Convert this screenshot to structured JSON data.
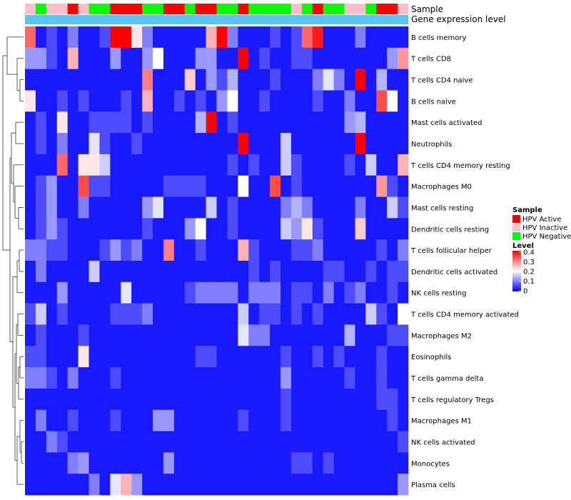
{
  "chart_data": {
    "type": "heatmap",
    "annotation_labels": [
      "Sample",
      "Gene expression level"
    ],
    "sample_annotation": [
      "HPV Inactive",
      "HPV Negative",
      "HPV Inactive",
      "HPV Inactive",
      "HPV Active",
      "HPV Inactive",
      "HPV Negative",
      "HPV Negative",
      "HPV Active",
      "HPV Active",
      "HPV Active",
      "HPV Negative",
      "HPV Negative",
      "HPV Active",
      "HPV Active",
      "HPV Negative",
      "HPV Active",
      "HPV Active",
      "HPV Negative",
      "HPV Negative",
      "HPV Active",
      "HPV Negative",
      "HPV Negative",
      "HPV Negative",
      "HPV Negative",
      "HPV Inactive",
      "HPV Negative",
      "HPV Active",
      "HPV Negative",
      "HPV Negative",
      "HPV Inactive",
      "HPV Inactive",
      "HPV Negative",
      "HPV Active",
      "HPV Active",
      "HPV Inactive"
    ],
    "rows": [
      "B cells memory",
      "T cells CD8",
      "T cells CD4 naive",
      "B cells naive",
      "Mast cells activated",
      "Neutrophils",
      "T cells CD4 memory resting",
      "Macrophages M0",
      "Mast cells resting",
      "Dendritic cells resting",
      "T cells follicular helper",
      "Dendritic cells activated",
      "NK cells resting",
      "T cells CD4 memory activated",
      "Macrophages M2",
      "Eosinophils",
      "T cells gamma delta",
      "T cells regulatory  Tregs",
      "Macrophages M1",
      "NK cells activated",
      "Monocytes",
      "Plasma cells"
    ],
    "values": [
      [
        0.32,
        0.02,
        0.06,
        0.02,
        0.1,
        0.02,
        0.02,
        0.06,
        0.4,
        0.4,
        0.22,
        0.1,
        0.02,
        0.02,
        0.02,
        0.02,
        0.02,
        0.26,
        0.4,
        0.1,
        0.02,
        0.02,
        0.02,
        0.06,
        0.02,
        0.06,
        0.32,
        0.38,
        0.02,
        0.02,
        0.02,
        0.1,
        0.02,
        0.02,
        0.02,
        0.02
      ],
      [
        0.12,
        0.12,
        0.06,
        0.02,
        0.26,
        0.02,
        0.02,
        0.02,
        0.12,
        0.02,
        0.02,
        0.12,
        0.2,
        0.02,
        0.02,
        0.02,
        0.12,
        0.12,
        0.02,
        0.02,
        0.4,
        0.02,
        0.06,
        0.02,
        0.02,
        0.06,
        0.06,
        0.02,
        0.02,
        0.02,
        0.02,
        0.02,
        0.02,
        0.02,
        0.12,
        0.28
      ],
      [
        0.02,
        0.02,
        0.02,
        0.02,
        0.02,
        0.02,
        0.02,
        0.02,
        0.02,
        0.02,
        0.02,
        0.3,
        0.02,
        0.02,
        0.02,
        0.24,
        0.02,
        0.12,
        0.06,
        0.14,
        0.02,
        0.02,
        0.02,
        0.06,
        0.02,
        0.02,
        0.02,
        0.1,
        0.18,
        0.1,
        0.02,
        0.4,
        0.02,
        0.14,
        0.02,
        0.02
      ],
      [
        0.22,
        0.02,
        0.02,
        0.06,
        0.02,
        0.06,
        0.02,
        0.02,
        0.02,
        0.06,
        0.02,
        0.26,
        0.02,
        0.02,
        0.06,
        0.02,
        0.06,
        0.02,
        0.12,
        0.2,
        0.02,
        0.02,
        0.06,
        0.02,
        0.02,
        0.02,
        0.02,
        0.06,
        0.02,
        0.02,
        0.1,
        0.02,
        0.02,
        0.34,
        0.2,
        0.02
      ],
      [
        0.02,
        0.06,
        0.02,
        0.22,
        0.02,
        0.02,
        0.06,
        0.06,
        0.06,
        0.06,
        0.02,
        0.06,
        0.02,
        0.02,
        0.02,
        0.02,
        0.14,
        0.4,
        0.02,
        0.06,
        0.02,
        0.02,
        0.02,
        0.02,
        0.02,
        0.02,
        0.02,
        0.02,
        0.02,
        0.02,
        0.12,
        0.14,
        0.02,
        0.02,
        0.02,
        0.02
      ],
      [
        0.02,
        0.06,
        0.02,
        0.1,
        0.02,
        0.02,
        0.18,
        0.06,
        0.02,
        0.02,
        0.06,
        0.02,
        0.02,
        0.02,
        0.02,
        0.02,
        0.02,
        0.02,
        0.02,
        0.02,
        0.4,
        0.02,
        0.02,
        0.02,
        0.16,
        0.02,
        0.02,
        0.02,
        0.02,
        0.02,
        0.02,
        0.4,
        0.02,
        0.02,
        0.02,
        0.02
      ],
      [
        0.02,
        0.02,
        0.02,
        0.32,
        0.02,
        0.22,
        0.22,
        0.16,
        0.02,
        0.02,
        0.02,
        0.02,
        0.02,
        0.02,
        0.02,
        0.02,
        0.02,
        0.02,
        0.02,
        0.06,
        0.02,
        0.06,
        0.02,
        0.02,
        0.16,
        0.06,
        0.02,
        0.02,
        0.02,
        0.02,
        0.06,
        0.02,
        0.16,
        0.02,
        0.02,
        0.26
      ],
      [
        0.02,
        0.06,
        0.12,
        0.02,
        0.02,
        0.34,
        0.06,
        0.06,
        0.02,
        0.02,
        0.02,
        0.02,
        0.02,
        0.06,
        0.06,
        0.06,
        0.06,
        0.02,
        0.02,
        0.02,
        0.2,
        0.02,
        0.02,
        0.34,
        0.02,
        0.06,
        0.02,
        0.02,
        0.02,
        0.02,
        0.02,
        0.02,
        0.02,
        0.28,
        0.06,
        0.02
      ],
      [
        0.02,
        0.06,
        0.12,
        0.02,
        0.02,
        0.1,
        0.02,
        0.02,
        0.02,
        0.02,
        0.02,
        0.12,
        0.18,
        0.02,
        0.02,
        0.02,
        0.02,
        0.16,
        0.02,
        0.06,
        0.02,
        0.02,
        0.02,
        0.02,
        0.1,
        0.14,
        0.1,
        0.02,
        0.02,
        0.02,
        0.02,
        0.1,
        0.02,
        0.02,
        0.16,
        0.06
      ],
      [
        0.02,
        0.06,
        0.12,
        0.06,
        0.02,
        0.02,
        0.02,
        0.02,
        0.02,
        0.02,
        0.02,
        0.06,
        0.02,
        0.02,
        0.02,
        0.12,
        0.2,
        0.02,
        0.02,
        0.06,
        0.02,
        0.02,
        0.02,
        0.02,
        0.16,
        0.12,
        0.22,
        0.06,
        0.02,
        0.02,
        0.02,
        0.24,
        0.02,
        0.02,
        0.02,
        0.02
      ],
      [
        0.1,
        0.1,
        0.06,
        0.06,
        0.02,
        0.02,
        0.02,
        0.06,
        0.12,
        0.06,
        0.1,
        0.02,
        0.02,
        0.3,
        0.02,
        0.02,
        0.06,
        0.02,
        0.02,
        0.02,
        0.26,
        0.06,
        0.02,
        0.02,
        0.02,
        0.06,
        0.06,
        0.1,
        0.02,
        0.02,
        0.02,
        0.02,
        0.02,
        0.06,
        0.02,
        0.1
      ],
      [
        0.02,
        0.1,
        0.02,
        0.02,
        0.02,
        0.02,
        0.16,
        0.02,
        0.02,
        0.02,
        0.02,
        0.02,
        0.02,
        0.02,
        0.02,
        0.02,
        0.02,
        0.02,
        0.02,
        0.02,
        0.02,
        0.06,
        0.02,
        0.06,
        0.02,
        0.02,
        0.02,
        0.02,
        0.06,
        0.06,
        0.02,
        0.02,
        0.06,
        0.02,
        0.06,
        0.06
      ],
      [
        0.02,
        0.02,
        0.02,
        0.12,
        0.02,
        0.02,
        0.02,
        0.02,
        0.02,
        0.18,
        0.02,
        0.02,
        0.02,
        0.02,
        0.02,
        0.06,
        0.1,
        0.1,
        0.1,
        0.1,
        0.02,
        0.1,
        0.1,
        0.1,
        0.02,
        0.06,
        0.06,
        0.02,
        0.1,
        0.02,
        0.06,
        0.1,
        0.02,
        0.02,
        0.06,
        0.02
      ],
      [
        0.06,
        0.16,
        0.02,
        0.06,
        0.02,
        0.02,
        0.02,
        0.02,
        0.06,
        0.06,
        0.06,
        0.1,
        0.02,
        0.02,
        0.02,
        0.02,
        0.02,
        0.02,
        0.02,
        0.02,
        0.16,
        0.02,
        0.06,
        0.06,
        0.02,
        0.06,
        0.02,
        0.06,
        0.02,
        0.02,
        0.02,
        0.02,
        0.16,
        0.06,
        0.02,
        0.2
      ],
      [
        0.02,
        0.06,
        0.02,
        0.02,
        0.02,
        0.06,
        0.02,
        0.02,
        0.02,
        0.02,
        0.02,
        0.02,
        0.02,
        0.02,
        0.02,
        0.02,
        0.02,
        0.02,
        0.02,
        0.02,
        0.18,
        0.1,
        0.1,
        0.02,
        0.02,
        0.02,
        0.02,
        0.02,
        0.02,
        0.02,
        0.14,
        0.02,
        0.02,
        0.02,
        0.06,
        0.06
      ],
      [
        0.06,
        0.06,
        0.02,
        0.02,
        0.02,
        0.22,
        0.02,
        0.02,
        0.02,
        0.02,
        0.02,
        0.02,
        0.02,
        0.02,
        0.02,
        0.02,
        0.06,
        0.06,
        0.02,
        0.02,
        0.02,
        0.02,
        0.02,
        0.02,
        0.06,
        0.02,
        0.02,
        0.06,
        0.02,
        0.06,
        0.02,
        0.02,
        0.02,
        0.06,
        0.02,
        0.02
      ],
      [
        0.1,
        0.1,
        0.06,
        0.02,
        0.1,
        0.02,
        0.02,
        0.02,
        0.06,
        0.02,
        0.02,
        0.02,
        0.02,
        0.02,
        0.02,
        0.02,
        0.02,
        0.02,
        0.02,
        0.02,
        0.02,
        0.02,
        0.02,
        0.02,
        0.12,
        0.02,
        0.02,
        0.02,
        0.02,
        0.02,
        0.06,
        0.02,
        0.02,
        0.06,
        0.02,
        0.02
      ],
      [
        0.02,
        0.02,
        0.02,
        0.02,
        0.02,
        0.02,
        0.02,
        0.02,
        0.02,
        0.02,
        0.02,
        0.02,
        0.02,
        0.02,
        0.02,
        0.02,
        0.02,
        0.02,
        0.02,
        0.02,
        0.02,
        0.02,
        0.02,
        0.02,
        0.06,
        0.02,
        0.02,
        0.02,
        0.02,
        0.02,
        0.02,
        0.02,
        0.02,
        0.06,
        0.06,
        0.02
      ],
      [
        0.02,
        0.1,
        0.02,
        0.02,
        0.06,
        0.02,
        0.02,
        0.02,
        0.06,
        0.02,
        0.02,
        0.02,
        0.12,
        0.12,
        0.02,
        0.02,
        0.02,
        0.02,
        0.02,
        0.02,
        0.06,
        0.02,
        0.02,
        0.02,
        0.06,
        0.02,
        0.02,
        0.02,
        0.02,
        0.02,
        0.02,
        0.02,
        0.02,
        0.02,
        0.06,
        0.02
      ],
      [
        0.02,
        0.02,
        0.1,
        0.06,
        0.02,
        0.02,
        0.02,
        0.02,
        0.02,
        0.02,
        0.02,
        0.02,
        0.02,
        0.02,
        0.02,
        0.02,
        0.02,
        0.02,
        0.02,
        0.02,
        0.02,
        0.02,
        0.02,
        0.02,
        0.02,
        0.02,
        0.02,
        0.02,
        0.02,
        0.02,
        0.02,
        0.02,
        0.02,
        0.02,
        0.02,
        0.06
      ],
      [
        0.02,
        0.02,
        0.02,
        0.02,
        0.1,
        0.12,
        0.02,
        0.02,
        0.02,
        0.02,
        0.02,
        0.02,
        0.02,
        0.12,
        0.02,
        0.02,
        0.02,
        0.02,
        0.02,
        0.02,
        0.02,
        0.02,
        0.02,
        0.02,
        0.02,
        0.06,
        0.06,
        0.02,
        0.06,
        0.02,
        0.02,
        0.02,
        0.02,
        0.02,
        0.02,
        0.02
      ],
      [
        0.02,
        0.02,
        0.02,
        0.02,
        0.02,
        0.02,
        0.1,
        0.02,
        0.18,
        0.26,
        0.12,
        0.02,
        0.02,
        0.02,
        0.02,
        0.02,
        0.02,
        0.02,
        0.02,
        0.02,
        0.02,
        0.02,
        0.02,
        0.02,
        0.02,
        0.02,
        0.02,
        0.02,
        0.02,
        0.02,
        0.02,
        0.02,
        0.02,
        0.02,
        0.02,
        0.12
      ]
    ],
    "legends": {
      "sample": {
        "title": "Sample",
        "entries": [
          {
            "label": "HPV Active",
            "color": "#ff0000"
          },
          {
            "label": "HPV Inactive",
            "color": "#ffc0cb"
          },
          {
            "label": "HPV Negative",
            "color": "#00ff00"
          }
        ]
      },
      "level": {
        "title": "Level",
        "range": [
          0,
          0.4
        ],
        "ticks": [
          "0.4",
          "0.3",
          "0.2",
          "0.1",
          "0"
        ],
        "colors": {
          "low": "#0000ff",
          "mid": "#ffffff",
          "high": "#ff0000"
        }
      },
      "expression_bar_color": "#5bc4f5"
    },
    "dendrogram": "row-clustering tree (left side)"
  }
}
